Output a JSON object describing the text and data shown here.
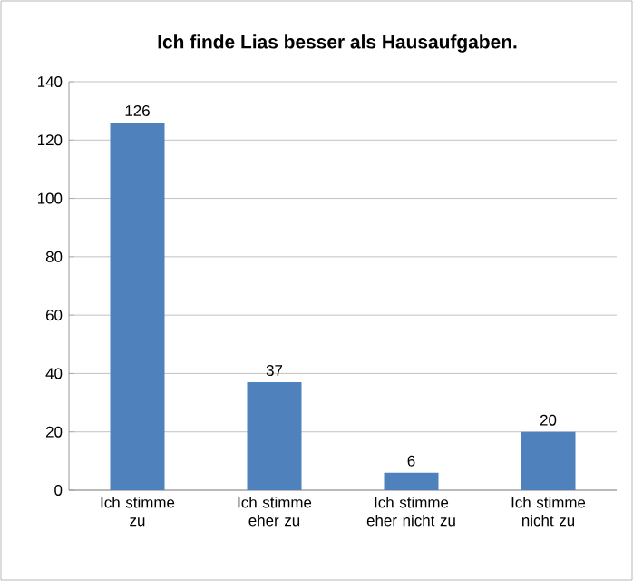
{
  "chart_data": {
    "type": "bar",
    "title": "Ich finde Lias besser als Hausaufgaben.",
    "categories": [
      "Ich stimme zu",
      "Ich stimme eher zu",
      "Ich stimme eher nicht zu",
      "Ich stimme nicht zu"
    ],
    "values": [
      126,
      37,
      6,
      20
    ],
    "color": "#4f81bd",
    "ylim": [
      0,
      140
    ],
    "yticks": [
      0,
      20,
      40,
      60,
      80,
      100,
      120,
      140
    ],
    "grid": "y",
    "data_labels": true
  }
}
